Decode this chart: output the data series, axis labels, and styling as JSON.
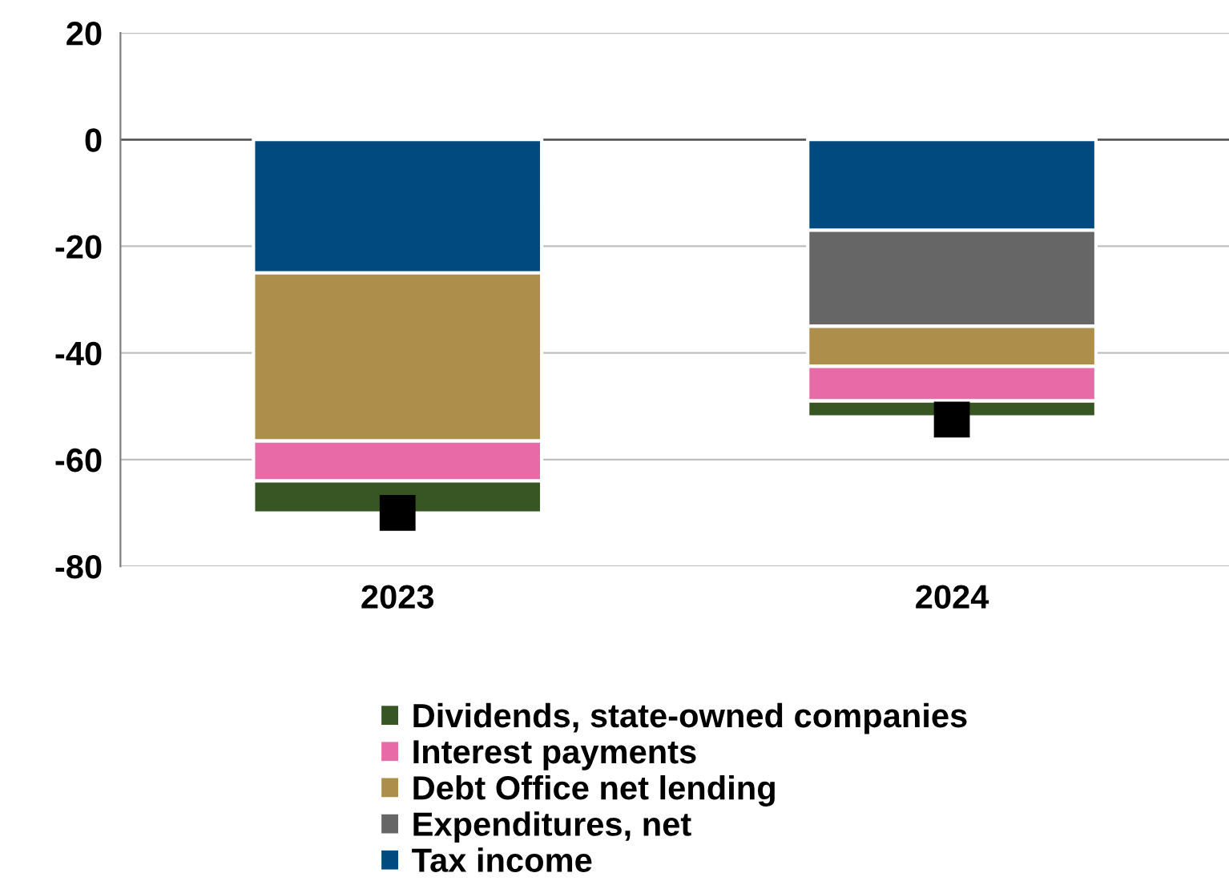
{
  "chart_data": {
    "type": "bar",
    "stacked": true,
    "categories": [
      "2023",
      "2024"
    ],
    "series": [
      {
        "name": "Tax income",
        "color": "#004a7f",
        "values": [
          -25,
          -17
        ]
      },
      {
        "name": "Expenditures, net",
        "color": "#666666",
        "values": [
          null,
          -18
        ]
      },
      {
        "name": "Debt Office net lending",
        "color": "#ad8f4b",
        "values": [
          -31.5,
          -7.5
        ]
      },
      {
        "name": "Interest payments",
        "color": "#e86aa6",
        "values": [
          -7.5,
          -6.5
        ]
      },
      {
        "name": "Dividends, state-owned companies",
        "color": "#375623",
        "values": [
          -6,
          -3
        ]
      },
      {
        "type": "scatter",
        "color": "#000000",
        "marker": "square",
        "values": [
          -70,
          -52.5
        ]
      }
    ],
    "ylim": [
      -80,
      20
    ],
    "yticks": [
      -80,
      -60,
      -40,
      -20,
      0,
      20
    ],
    "grid": "y",
    "legend": "bottom"
  }
}
